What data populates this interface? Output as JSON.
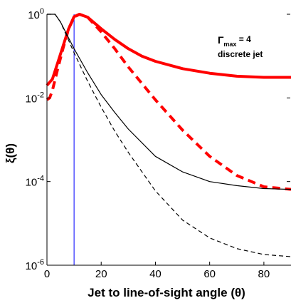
{
  "chart_data": {
    "type": "line",
    "title": "",
    "xlabel": "Jet to line-of-sight angle (θ)",
    "ylabel": "ξ(θ)",
    "xlim": [
      0,
      90
    ],
    "ylim_log10": [
      -6,
      0
    ],
    "yscale": "log",
    "grid": false,
    "x_ticks": [
      "0",
      "20",
      "40",
      "60",
      "80"
    ],
    "y_ticks": [
      {
        "base": "10",
        "exp": "-6"
      },
      {
        "base": "10",
        "exp": "-4"
      },
      {
        "base": "10",
        "exp": "-2"
      },
      {
        "base": "10",
        "exp": "0"
      }
    ],
    "annotation": {
      "symbol": "Γ",
      "sub": "max",
      "rest": " = 4",
      "line2": "discrete jet"
    },
    "vline_x": 10,
    "series": [
      {
        "style": "red-solid-thick",
        "color": "#ff0000",
        "x": [
          0,
          2,
          4,
          6,
          8,
          10,
          12,
          15,
          20,
          25,
          30,
          35,
          40,
          50,
          60,
          70,
          80,
          90
        ],
        "y": [
          0.02,
          0.028,
          0.07,
          0.18,
          0.45,
          0.88,
          1.0,
          0.85,
          0.45,
          0.25,
          0.15,
          0.1,
          0.075,
          0.05,
          0.039,
          0.033,
          0.031,
          0.031
        ]
      },
      {
        "style": "red-dashed-thick",
        "color": "#ff0000",
        "x": [
          0,
          1,
          2,
          4,
          6,
          8,
          10,
          12,
          15,
          20,
          25,
          30,
          40,
          50,
          60,
          70,
          80,
          90
        ],
        "y": [
          0.009,
          0.01,
          0.015,
          0.05,
          0.16,
          0.45,
          0.85,
          1.0,
          0.85,
          0.38,
          0.15,
          0.055,
          0.009,
          0.0017,
          0.0004,
          0.00014,
          7.5e-05,
          6.5e-05
        ]
      },
      {
        "style": "black-solid-thin",
        "color": "#000000",
        "x": [
          0,
          3,
          5,
          10,
          15,
          20,
          25,
          30,
          40,
          50,
          60,
          70,
          80,
          90
        ],
        "y": [
          1.0,
          1.0,
          0.65,
          0.15,
          0.04,
          0.012,
          0.0045,
          0.0018,
          0.0004,
          0.00017,
          0.0001,
          8e-05,
          6.8e-05,
          6.5e-05
        ]
      },
      {
        "style": "black-dashed-thin",
        "color": "#000000",
        "x": [
          0,
          3,
          5,
          10,
          15,
          20,
          25,
          30,
          40,
          50,
          60,
          70,
          80,
          90
        ],
        "y": [
          1.0,
          1.0,
          0.65,
          0.12,
          0.025,
          0.006,
          0.0016,
          0.0005,
          6e-05,
          1.2e-05,
          4.5e-06,
          2.5e-06,
          1.8e-06,
          1.6e-06
        ]
      }
    ]
  }
}
